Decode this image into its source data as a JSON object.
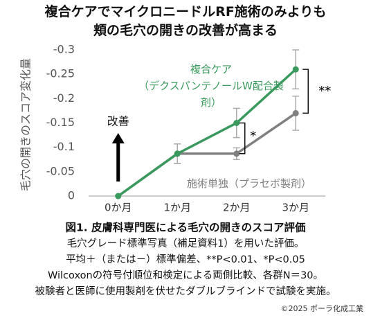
{
  "chart_data": {
    "type": "line",
    "title": "複合ケアでマイクロニードルRF施術のみよりも\n頬の毛穴の開きの改善が高まる",
    "y_label": "毛穴の開きのスコア変化量",
    "categories": [
      "0か月",
      "1か月",
      "2か月",
      "3か月"
    ],
    "series": [
      {
        "name": "複合ケア\n（デクスパンテノールW配合製剤）",
        "color": "#3a9a5e",
        "values": [
          0,
          -0.087,
          -0.15,
          -0.26
        ],
        "errors": [
          0,
          0.02,
          0.03,
          0.04
        ]
      },
      {
        "name": "施術単独（プラセボ製剤）",
        "color": "#808080",
        "values": [
          0,
          -0.087,
          -0.087,
          -0.17
        ],
        "errors": [
          0,
          0.02,
          0.012,
          0.035
        ]
      }
    ],
    "ylim": [
      0,
      -0.3
    ],
    "yticks": [
      -0.3,
      -0.25,
      -0.2,
      -0.15,
      -0.1,
      -0.05,
      0
    ],
    "grid": false,
    "annotations": {
      "improvement": "改善",
      "sig_month2": "*",
      "sig_month3": "**"
    },
    "caption": [
      "図1. 皮膚科専門医による毛穴の開きのスコア評価",
      "毛穴グレード標準写真（補足資料1）を用いた評価。",
      "平均＋（または－）標準偏差、**P<0.01、*P<0.05",
      "Wilcoxonの符号付順位和検定による両側比較、各群N＝30。",
      "被験者と医師に使用製剤を伏せたダブルブラインドで試験を実施。"
    ],
    "copyright": "©2025 ポーラ化成工業"
  }
}
